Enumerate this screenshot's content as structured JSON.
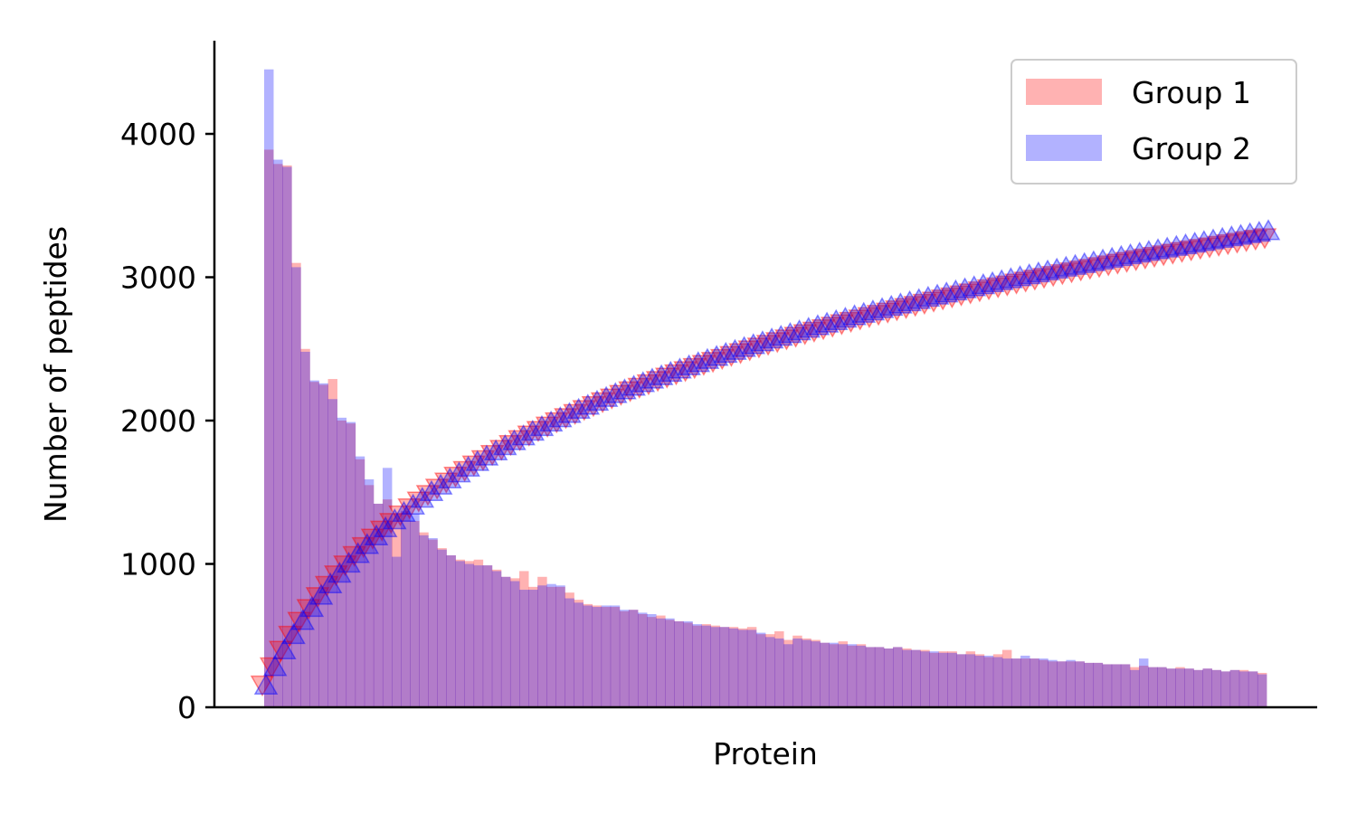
{
  "chart_data": {
    "type": "bar",
    "title": "",
    "xlabel": "Protein",
    "ylabel": "Number of peptides",
    "ylim": [
      0,
      4650
    ],
    "yticks": [
      0,
      1000,
      2000,
      3000,
      4000
    ],
    "xticks_visible": false,
    "grid": false,
    "legend_position": "top-right",
    "series": [
      {
        "name": "Group 1",
        "color": "#ff0000",
        "hist_values": [
          3890,
          3790,
          3780,
          3100,
          2500,
          2270,
          2250,
          2290,
          2000,
          1980,
          1730,
          1550,
          1420,
          1450,
          1350,
          1360,
          1300,
          1220,
          1170,
          1110,
          1060,
          1030,
          1020,
          1030,
          990,
          960,
          910,
          900,
          950,
          840,
          910,
          840,
          840,
          800,
          750,
          720,
          710,
          700,
          700,
          670,
          680,
          650,
          630,
          640,
          610,
          600,
          590,
          570,
          580,
          570,
          560,
          560,
          550,
          560,
          510,
          510,
          530,
          470,
          500,
          480,
          470,
          450,
          440,
          460,
          430,
          440,
          420,
          420,
          410,
          420,
          410,
          400,
          400,
          380,
          390,
          390,
          370,
          390,
          370,
          350,
          370,
          400,
          340,
          340,
          340,
          330,
          320,
          320,
          320,
          320,
          310,
          310,
          300,
          300,
          300,
          280,
          290,
          280,
          280,
          270,
          280,
          270,
          260,
          270,
          260,
          250,
          260,
          260,
          250,
          240
        ],
        "curve_start": 160,
        "curve_end": 3280
      },
      {
        "name": "Group 2",
        "color": "#0000ff",
        "hist_values": [
          4450,
          3820,
          3770,
          3070,
          2480,
          2280,
          2260,
          2150,
          2020,
          1990,
          1750,
          1590,
          1420,
          1670,
          1050,
          1370,
          1350,
          1200,
          1180,
          1100,
          1060,
          1020,
          1000,
          990,
          990,
          950,
          910,
          880,
          820,
          820,
          850,
          860,
          850,
          760,
          730,
          710,
          700,
          710,
          710,
          680,
          680,
          660,
          650,
          620,
          620,
          600,
          600,
          580,
          570,
          560,
          560,
          550,
          540,
          540,
          520,
          490,
          480,
          440,
          480,
          470,
          460,
          450,
          450,
          440,
          440,
          430,
          420,
          420,
          410,
          420,
          400,
          400,
          390,
          390,
          380,
          380,
          370,
          370,
          360,
          360,
          350,
          340,
          340,
          360,
          340,
          340,
          330,
          320,
          330,
          320,
          310,
          310,
          300,
          300,
          300,
          260,
          340,
          280,
          280,
          270,
          270,
          270,
          260,
          270,
          260,
          250,
          260,
          250,
          250,
          230
        ],
        "curve_start": 150,
        "curve_end": 3320
      }
    ]
  }
}
